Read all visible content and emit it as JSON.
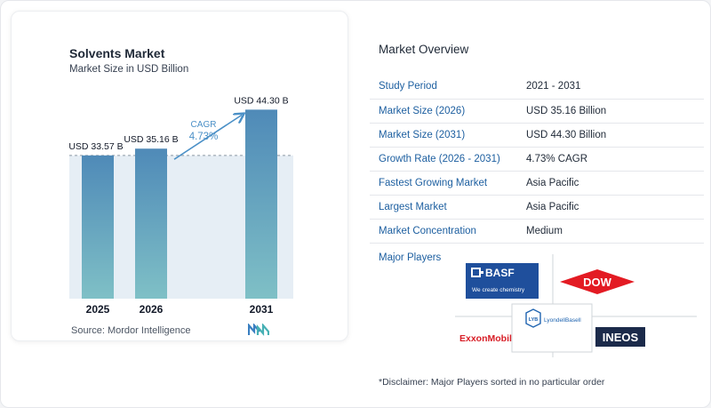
{
  "chart_data": {
    "type": "bar",
    "title": "Solvents Market",
    "subtitle": "Market Size in USD Billion",
    "categories": [
      "2025",
      "2026",
      "2031"
    ],
    "values": [
      33.57,
      35.16,
      44.3
    ],
    "value_labels": [
      "USD 33.57 B",
      "USD 35.16 B",
      "USD 44.30 B"
    ],
    "ylim": [
      0,
      45
    ],
    "cagr_label": "CAGR",
    "cagr_value": "4.73%",
    "colors": {
      "bar_top": "#4f8ab8",
      "bar_bottom": "#7fc0c6",
      "shade": "#e6eef5",
      "arrow": "#4b90c7"
    }
  },
  "source": {
    "label": "Source:",
    "name": "Mordor Intelligence"
  },
  "overview": {
    "title": "Market Overview",
    "rows": [
      {
        "key": "Study Period",
        "value": "2021 - 2031"
      },
      {
        "key": "Market Size (2026)",
        "value": "USD 35.16 Billion"
      },
      {
        "key": "Market Size (2031)",
        "value": "USD 44.30 Billion"
      },
      {
        "key": "Growth Rate (2026 - 2031)",
        "value": "4.73% CAGR"
      },
      {
        "key": "Fastest Growing Market",
        "value": "Asia Pacific"
      },
      {
        "key": "Largest Market",
        "value": "Asia Pacific"
      },
      {
        "key": "Market Concentration",
        "value": "Medium"
      }
    ]
  },
  "players": {
    "title": "Major Players",
    "basf": {
      "name": "BASF",
      "tagline": "We create chemistry"
    },
    "dow": {
      "name": "DOW"
    },
    "exxon": {
      "name": "ExxonMobil"
    },
    "lyb": {
      "mark": "LYB",
      "name": "LyondellBasell"
    },
    "ineos": {
      "name": "INEOS"
    }
  },
  "disclaimer": "*Disclaimer: Major Players sorted in no particular order"
}
